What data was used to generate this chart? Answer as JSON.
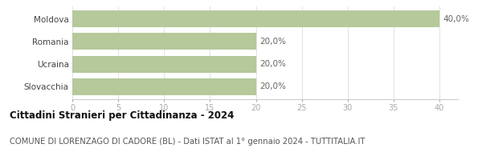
{
  "categories": [
    "Moldova",
    "Romania",
    "Ucraina",
    "Slovacchia"
  ],
  "values": [
    40.0,
    20.0,
    20.0,
    20.0
  ],
  "bar_color": "#b5c99a",
  "bar_labels": [
    "40,0%",
    "20,0%",
    "20,0%",
    "20,0%"
  ],
  "xlim": [
    0,
    42
  ],
  "xticks": [
    0,
    5,
    10,
    15,
    20,
    25,
    30,
    35,
    40
  ],
  "title": "Cittadini Stranieri per Cittadinanza - 2024",
  "subtitle": "COMUNE DI LORENZAGO DI CADORE (BL) - Dati ISTAT al 1° gennaio 2024 - TUTTITALIA.IT",
  "title_fontsize": 8.5,
  "subtitle_fontsize": 7.2,
  "label_fontsize": 7.5,
  "tick_fontsize": 7.0,
  "background_color": "#ffffff",
  "bar_height": 0.75
}
